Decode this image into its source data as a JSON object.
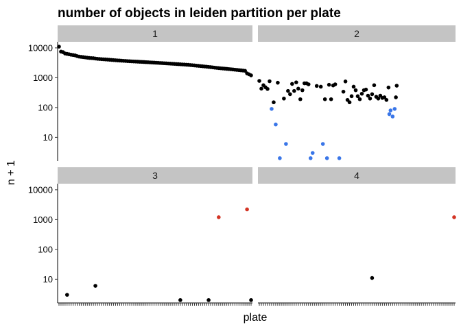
{
  "chart_data": {
    "type": "scatter",
    "title": "number of objects in leiden partition per plate",
    "xlabel": "plate",
    "ylabel": "n + 1",
    "y_scale": "log10",
    "ylim": [
      1.6,
      16000
    ],
    "y_ticks": [
      10,
      100,
      1000,
      10000
    ],
    "y_tick_labels": [
      "10",
      "100",
      "1000",
      "10000"
    ],
    "n_plates": 96,
    "colors": {
      "black": "#000000",
      "blue": "#3a76e8",
      "red": "#d33424",
      "strip": "#c4c4c4"
    },
    "panels": [
      {
        "label": "1",
        "points": [
          {
            "x": 1,
            "y": 11000,
            "c": "black"
          },
          {
            "x": 2,
            "y": 7500,
            "c": "black"
          },
          {
            "x": 3,
            "y": 7200,
            "c": "black"
          },
          {
            "x": 4,
            "y": 6500,
            "c": "black"
          },
          {
            "x": 5,
            "y": 6300,
            "c": "black"
          },
          {
            "x": 6,
            "y": 6100,
            "c": "black"
          },
          {
            "x": 7,
            "y": 5900,
            "c": "black"
          },
          {
            "x": 8,
            "y": 5750,
            "c": "black"
          },
          {
            "x": 9,
            "y": 5600,
            "c": "black"
          },
          {
            "x": 10,
            "y": 5300,
            "c": "black"
          },
          {
            "x": 11,
            "y": 5100,
            "c": "black"
          },
          {
            "x": 12,
            "y": 5000,
            "c": "black"
          },
          {
            "x": 13,
            "y": 4900,
            "c": "black"
          },
          {
            "x": 14,
            "y": 4800,
            "c": "black"
          },
          {
            "x": 15,
            "y": 4700,
            "c": "black"
          },
          {
            "x": 16,
            "y": 4600,
            "c": "black"
          },
          {
            "x": 17,
            "y": 4550,
            "c": "black"
          },
          {
            "x": 18,
            "y": 4500,
            "c": "black"
          },
          {
            "x": 19,
            "y": 4400,
            "c": "black"
          },
          {
            "x": 20,
            "y": 4300,
            "c": "black"
          },
          {
            "x": 21,
            "y": 4250,
            "c": "black"
          },
          {
            "x": 22,
            "y": 4200,
            "c": "black"
          },
          {
            "x": 23,
            "y": 4150,
            "c": "black"
          },
          {
            "x": 24,
            "y": 4100,
            "c": "black"
          },
          {
            "x": 25,
            "y": 4050,
            "c": "black"
          },
          {
            "x": 26,
            "y": 4000,
            "c": "black"
          },
          {
            "x": 27,
            "y": 3950,
            "c": "black"
          },
          {
            "x": 28,
            "y": 3900,
            "c": "black"
          },
          {
            "x": 29,
            "y": 3850,
            "c": "black"
          },
          {
            "x": 30,
            "y": 3800,
            "c": "black"
          },
          {
            "x": 31,
            "y": 3760,
            "c": "black"
          },
          {
            "x": 32,
            "y": 3720,
            "c": "black"
          },
          {
            "x": 33,
            "y": 3680,
            "c": "black"
          },
          {
            "x": 34,
            "y": 3650,
            "c": "black"
          },
          {
            "x": 35,
            "y": 3600,
            "c": "black"
          },
          {
            "x": 36,
            "y": 3570,
            "c": "black"
          },
          {
            "x": 37,
            "y": 3540,
            "c": "black"
          },
          {
            "x": 38,
            "y": 3510,
            "c": "black"
          },
          {
            "x": 39,
            "y": 3480,
            "c": "black"
          },
          {
            "x": 40,
            "y": 3450,
            "c": "black"
          },
          {
            "x": 41,
            "y": 3420,
            "c": "black"
          },
          {
            "x": 42,
            "y": 3390,
            "c": "black"
          },
          {
            "x": 43,
            "y": 3360,
            "c": "black"
          },
          {
            "x": 44,
            "y": 3330,
            "c": "black"
          },
          {
            "x": 45,
            "y": 3300,
            "c": "black"
          },
          {
            "x": 46,
            "y": 3270,
            "c": "black"
          },
          {
            "x": 47,
            "y": 3240,
            "c": "black"
          },
          {
            "x": 48,
            "y": 3210,
            "c": "black"
          },
          {
            "x": 49,
            "y": 3180,
            "c": "black"
          },
          {
            "x": 50,
            "y": 3150,
            "c": "black"
          },
          {
            "x": 51,
            "y": 3120,
            "c": "black"
          },
          {
            "x": 52,
            "y": 3090,
            "c": "black"
          },
          {
            "x": 53,
            "y": 3060,
            "c": "black"
          },
          {
            "x": 54,
            "y": 3030,
            "c": "black"
          },
          {
            "x": 55,
            "y": 3000,
            "c": "black"
          },
          {
            "x": 56,
            "y": 2970,
            "c": "black"
          },
          {
            "x": 57,
            "y": 2940,
            "c": "black"
          },
          {
            "x": 58,
            "y": 2910,
            "c": "black"
          },
          {
            "x": 59,
            "y": 2880,
            "c": "black"
          },
          {
            "x": 60,
            "y": 2850,
            "c": "black"
          },
          {
            "x": 61,
            "y": 2820,
            "c": "black"
          },
          {
            "x": 62,
            "y": 2790,
            "c": "black"
          },
          {
            "x": 63,
            "y": 2760,
            "c": "black"
          },
          {
            "x": 64,
            "y": 2730,
            "c": "black"
          },
          {
            "x": 65,
            "y": 2700,
            "c": "black"
          },
          {
            "x": 66,
            "y": 2660,
            "c": "black"
          },
          {
            "x": 67,
            "y": 2620,
            "c": "black"
          },
          {
            "x": 68,
            "y": 2580,
            "c": "black"
          },
          {
            "x": 69,
            "y": 2540,
            "c": "black"
          },
          {
            "x": 70,
            "y": 2500,
            "c": "black"
          },
          {
            "x": 71,
            "y": 2460,
            "c": "black"
          },
          {
            "x": 72,
            "y": 2420,
            "c": "black"
          },
          {
            "x": 73,
            "y": 2380,
            "c": "black"
          },
          {
            "x": 74,
            "y": 2340,
            "c": "black"
          },
          {
            "x": 75,
            "y": 2300,
            "c": "black"
          },
          {
            "x": 76,
            "y": 2260,
            "c": "black"
          },
          {
            "x": 77,
            "y": 2220,
            "c": "black"
          },
          {
            "x": 78,
            "y": 2180,
            "c": "black"
          },
          {
            "x": 79,
            "y": 2140,
            "c": "black"
          },
          {
            "x": 80,
            "y": 2100,
            "c": "black"
          },
          {
            "x": 81,
            "y": 2070,
            "c": "black"
          },
          {
            "x": 82,
            "y": 2040,
            "c": "black"
          },
          {
            "x": 83,
            "y": 2010,
            "c": "black"
          },
          {
            "x": 84,
            "y": 1980,
            "c": "black"
          },
          {
            "x": 85,
            "y": 1950,
            "c": "black"
          },
          {
            "x": 86,
            "y": 1920,
            "c": "black"
          },
          {
            "x": 87,
            "y": 1890,
            "c": "black"
          },
          {
            "x": 88,
            "y": 1860,
            "c": "black"
          },
          {
            "x": 89,
            "y": 1830,
            "c": "black"
          },
          {
            "x": 90,
            "y": 1800,
            "c": "black"
          },
          {
            "x": 91,
            "y": 1770,
            "c": "black"
          },
          {
            "x": 92,
            "y": 1740,
            "c": "black"
          },
          {
            "x": 93,
            "y": 1710,
            "c": "black"
          },
          {
            "x": 94,
            "y": 1400,
            "c": "black"
          },
          {
            "x": 95,
            "y": 1300,
            "c": "black"
          },
          {
            "x": 96,
            "y": 1200,
            "c": "black"
          }
        ]
      },
      {
        "label": "2",
        "points": [
          {
            "x": 1,
            "y": 780,
            "c": "black"
          },
          {
            "x": 2,
            "y": 430,
            "c": "black"
          },
          {
            "x": 3,
            "y": 560,
            "c": "black"
          },
          {
            "x": 4,
            "y": 480,
            "c": "black"
          },
          {
            "x": 5,
            "y": 420,
            "c": "black"
          },
          {
            "x": 6,
            "y": 760,
            "c": "black"
          },
          {
            "x": 7,
            "y": 90,
            "c": "blue"
          },
          {
            "x": 8,
            "y": 150,
            "c": "black"
          },
          {
            "x": 9,
            "y": 27,
            "c": "blue"
          },
          {
            "x": 10,
            "y": 680,
            "c": "black"
          },
          {
            "x": 11,
            "y": 2,
            "c": "blue"
          },
          {
            "x": 13,
            "y": 200,
            "c": "black"
          },
          {
            "x": 14,
            "y": 6,
            "c": "blue"
          },
          {
            "x": 15,
            "y": 360,
            "c": "black"
          },
          {
            "x": 16,
            "y": 280,
            "c": "black"
          },
          {
            "x": 17,
            "y": 620,
            "c": "black"
          },
          {
            "x": 18,
            "y": 360,
            "c": "black"
          },
          {
            "x": 19,
            "y": 700,
            "c": "black"
          },
          {
            "x": 20,
            "y": 430,
            "c": "black"
          },
          {
            "x": 21,
            "y": 190,
            "c": "black"
          },
          {
            "x": 22,
            "y": 380,
            "c": "black"
          },
          {
            "x": 23,
            "y": 650,
            "c": "black"
          },
          {
            "x": 24,
            "y": 650,
            "c": "black"
          },
          {
            "x": 25,
            "y": 600,
            "c": "black"
          },
          {
            "x": 26,
            "y": 2,
            "c": "blue"
          },
          {
            "x": 27,
            "y": 3,
            "c": "blue"
          },
          {
            "x": 29,
            "y": 530,
            "c": "black"
          },
          {
            "x": 31,
            "y": 500,
            "c": "black"
          },
          {
            "x": 32,
            "y": 6,
            "c": "blue"
          },
          {
            "x": 33,
            "y": 190,
            "c": "black"
          },
          {
            "x": 34,
            "y": 2,
            "c": "blue"
          },
          {
            "x": 35,
            "y": 580,
            "c": "black"
          },
          {
            "x": 36,
            "y": 190,
            "c": "black"
          },
          {
            "x": 37,
            "y": 550,
            "c": "black"
          },
          {
            "x": 38,
            "y": 600,
            "c": "black"
          },
          {
            "x": 40,
            "y": 2,
            "c": "blue"
          },
          {
            "x": 42,
            "y": 340,
            "c": "black"
          },
          {
            "x": 43,
            "y": 750,
            "c": "black"
          },
          {
            "x": 44,
            "y": 180,
            "c": "black"
          },
          {
            "x": 45,
            "y": 150,
            "c": "black"
          },
          {
            "x": 46,
            "y": 240,
            "c": "black"
          },
          {
            "x": 47,
            "y": 500,
            "c": "black"
          },
          {
            "x": 48,
            "y": 380,
            "c": "black"
          },
          {
            "x": 49,
            "y": 240,
            "c": "black"
          },
          {
            "x": 50,
            "y": 190,
            "c": "black"
          },
          {
            "x": 51,
            "y": 290,
            "c": "black"
          },
          {
            "x": 52,
            "y": 380,
            "c": "black"
          },
          {
            "x": 53,
            "y": 400,
            "c": "black"
          },
          {
            "x": 54,
            "y": 250,
            "c": "black"
          },
          {
            "x": 55,
            "y": 200,
            "c": "black"
          },
          {
            "x": 56,
            "y": 280,
            "c": "black"
          },
          {
            "x": 57,
            "y": 560,
            "c": "black"
          },
          {
            "x": 58,
            "y": 230,
            "c": "black"
          },
          {
            "x": 59,
            "y": 200,
            "c": "black"
          },
          {
            "x": 60,
            "y": 250,
            "c": "black"
          },
          {
            "x": 61,
            "y": 210,
            "c": "black"
          },
          {
            "x": 62,
            "y": 220,
            "c": "black"
          },
          {
            "x": 63,
            "y": 180,
            "c": "black"
          },
          {
            "x": 64,
            "y": 470,
            "c": "black"
          },
          {
            "x": 64.4,
            "y": 60,
            "c": "blue"
          },
          {
            "x": 65,
            "y": 80,
            "c": "blue"
          },
          {
            "x": 66,
            "y": 50,
            "c": "blue"
          },
          {
            "x": 67,
            "y": 90,
            "c": "blue"
          },
          {
            "x": 67.6,
            "y": 220,
            "c": "black"
          },
          {
            "x": 68,
            "y": 540,
            "c": "black"
          }
        ]
      },
      {
        "label": "3",
        "points": [
          {
            "x": 5,
            "y": 3,
            "c": "black"
          },
          {
            "x": 19,
            "y": 6,
            "c": "black"
          },
          {
            "x": 61,
            "y": 2,
            "c": "black"
          },
          {
            "x": 75,
            "y": 2,
            "c": "black"
          },
          {
            "x": 80,
            "y": 1200,
            "c": "red"
          },
          {
            "x": 94,
            "y": 2200,
            "c": "red"
          },
          {
            "x": 96,
            "y": 2,
            "c": "black"
          }
        ]
      },
      {
        "label": "4",
        "points": [
          {
            "x": 56,
            "y": 11,
            "c": "black"
          },
          {
            "x": 96,
            "y": 1200,
            "c": "red"
          }
        ]
      }
    ]
  }
}
